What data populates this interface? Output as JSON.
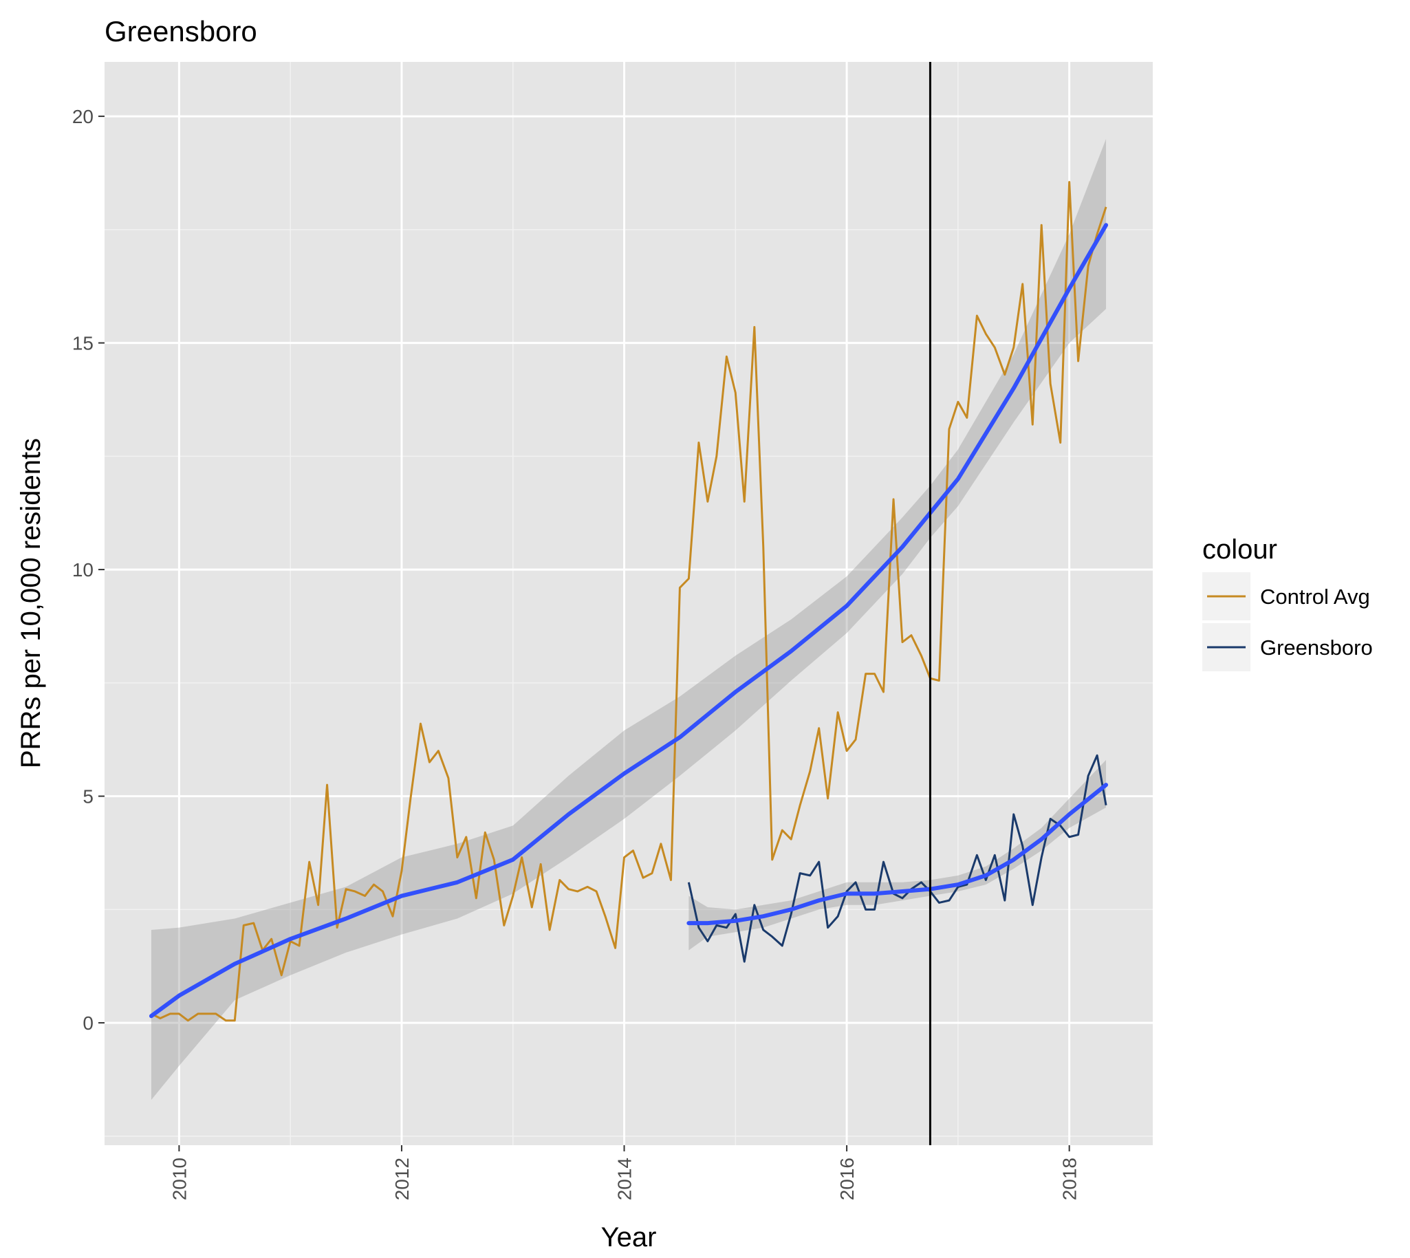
{
  "chart_data": {
    "type": "line",
    "title": "Greensboro",
    "xlabel": "Year",
    "ylabel": "PRRs per 10,000 residents",
    "xlim": [
      2009.33,
      2018.75
    ],
    "ylim": [
      -2.7,
      21.2
    ],
    "x_ticks": [
      2010,
      2012,
      2014,
      2016,
      2018
    ],
    "x_minor_ticks": [
      2011,
      2013,
      2015,
      2017
    ],
    "y_ticks": [
      0,
      5,
      10,
      15,
      20
    ],
    "y_minor_ticks": [
      -2.5,
      2.5,
      7.5,
      12.5,
      17.5
    ],
    "grid": true,
    "legend": {
      "title": "colour",
      "position": "right"
    },
    "vline": {
      "x": 2016.75,
      "color": "#000000"
    },
    "series": [
      {
        "name": "Control Avg",
        "color": "#c68a22",
        "x": [
          2009.75,
          2009.83,
          2009.92,
          2010.0,
          2010.08,
          2010.17,
          2010.25,
          2010.33,
          2010.42,
          2010.5,
          2010.58,
          2010.67,
          2010.75,
          2010.83,
          2010.92,
          2011.0,
          2011.08,
          2011.17,
          2011.25,
          2011.33,
          2011.42,
          2011.5,
          2011.58,
          2011.67,
          2011.75,
          2011.83,
          2011.92,
          2012.0,
          2012.08,
          2012.17,
          2012.25,
          2012.33,
          2012.42,
          2012.5,
          2012.58,
          2012.67,
          2012.75,
          2012.83,
          2012.92,
          2013.0,
          2013.08,
          2013.17,
          2013.25,
          2013.33,
          2013.42,
          2013.5,
          2013.58,
          2013.67,
          2013.75,
          2013.83,
          2013.92,
          2014.0,
          2014.08,
          2014.17,
          2014.25,
          2014.33,
          2014.42,
          2014.5,
          2014.58,
          2014.67,
          2014.75,
          2014.83,
          2014.92,
          2015.0,
          2015.08,
          2015.17,
          2015.25,
          2015.33,
          2015.42,
          2015.5,
          2015.58,
          2015.67,
          2015.75,
          2015.83,
          2015.92,
          2016.0,
          2016.08,
          2016.17,
          2016.25,
          2016.33,
          2016.42,
          2016.5,
          2016.58,
          2016.67,
          2016.75,
          2016.83,
          2016.92,
          2017.0,
          2017.08,
          2017.17,
          2017.25,
          2017.33,
          2017.42,
          2017.5,
          2017.58,
          2017.67,
          2017.75,
          2017.83,
          2017.92,
          2018.0,
          2018.08,
          2018.17,
          2018.25,
          2018.33
        ],
        "values": [
          0.2,
          0.1,
          0.2,
          0.2,
          0.05,
          0.2,
          0.2,
          0.2,
          0.05,
          0.05,
          2.15,
          2.2,
          1.6,
          1.85,
          1.05,
          1.8,
          1.7,
          3.55,
          2.6,
          5.25,
          2.1,
          2.95,
          2.9,
          2.8,
          3.05,
          2.9,
          2.35,
          3.35,
          4.95,
          6.6,
          5.75,
          6.0,
          5.4,
          3.65,
          4.1,
          2.75,
          4.2,
          3.6,
          2.15,
          2.8,
          3.65,
          2.55,
          3.5,
          2.05,
          3.15,
          2.95,
          2.9,
          3.0,
          2.9,
          2.35,
          1.65,
          3.65,
          3.8,
          3.2,
          3.3,
          3.95,
          3.15,
          9.6,
          9.8,
          12.8,
          11.5,
          12.5,
          14.7,
          13.9,
          11.5,
          15.35,
          10.5,
          3.6,
          4.25,
          4.05,
          4.8,
          5.55,
          6.5,
          4.95,
          6.85,
          6.0,
          6.25,
          7.7,
          7.7,
          7.3,
          11.55,
          8.4,
          8.55,
          8.1,
          7.6,
          7.55,
          13.1,
          13.7,
          13.35,
          15.6,
          15.2,
          14.9,
          14.3,
          14.9,
          16.3,
          13.2,
          17.6,
          14.1,
          12.8,
          18.55,
          14.6,
          16.7,
          17.4,
          18.0
        ]
      },
      {
        "name": "Greensboro",
        "color": "#1a3a6b",
        "x": [
          2014.58,
          2014.67,
          2014.75,
          2014.83,
          2014.92,
          2015.0,
          2015.08,
          2015.17,
          2015.25,
          2015.33,
          2015.42,
          2015.5,
          2015.58,
          2015.67,
          2015.75,
          2015.83,
          2015.92,
          2016.0,
          2016.08,
          2016.17,
          2016.25,
          2016.33,
          2016.42,
          2016.5,
          2016.58,
          2016.67,
          2016.75,
          2016.83,
          2016.92,
          2017.0,
          2017.08,
          2017.17,
          2017.25,
          2017.33,
          2017.42,
          2017.5,
          2017.58,
          2017.67,
          2017.75,
          2017.83,
          2017.92,
          2018.0,
          2018.08,
          2018.17,
          2018.25,
          2018.33
        ],
        "values": [
          3.1,
          2.1,
          1.8,
          2.15,
          2.1,
          2.4,
          1.35,
          2.6,
          2.05,
          1.9,
          1.7,
          2.4,
          3.3,
          3.25,
          3.55,
          2.1,
          2.35,
          2.9,
          3.1,
          2.5,
          2.5,
          3.55,
          2.85,
          2.75,
          2.95,
          3.1,
          2.9,
          2.65,
          2.7,
          3.0,
          3.05,
          3.7,
          3.15,
          3.7,
          2.7,
          4.6,
          3.9,
          2.6,
          3.65,
          4.5,
          4.35,
          4.1,
          4.15,
          5.45,
          5.9,
          4.8
        ]
      }
    ],
    "smooth_series": [
      {
        "color": "#3250fb",
        "x": [
          2009.75,
          2010.0,
          2010.5,
          2011.0,
          2011.5,
          2012.0,
          2012.5,
          2013.0,
          2013.5,
          2014.0,
          2014.5,
          2015.0,
          2015.5,
          2016.0,
          2016.5,
          2016.75,
          2017.0,
          2017.5,
          2018.0,
          2018.33
        ],
        "values": [
          0.15,
          0.6,
          1.3,
          1.85,
          2.3,
          2.8,
          3.1,
          3.6,
          4.6,
          5.5,
          6.3,
          7.3,
          8.2,
          9.2,
          10.5,
          11.25,
          12.0,
          14.0,
          16.2,
          17.6
        ],
        "ci_lower": [
          -1.7,
          -0.95,
          0.5,
          1.05,
          1.55,
          1.95,
          2.3,
          2.85,
          3.65,
          4.5,
          5.45,
          6.45,
          7.55,
          8.6,
          9.9,
          10.7,
          11.4,
          13.25,
          15.0,
          15.75
        ],
        "ci_upper": [
          2.05,
          2.1,
          2.3,
          2.65,
          3.0,
          3.65,
          3.95,
          4.35,
          5.45,
          6.45,
          7.2,
          8.1,
          8.9,
          9.85,
          11.15,
          11.85,
          12.65,
          14.75,
          17.4,
          19.5
        ]
      },
      {
        "color": "#3250fb",
        "x": [
          2014.58,
          2014.75,
          2015.0,
          2015.25,
          2015.5,
          2015.75,
          2016.0,
          2016.25,
          2016.5,
          2016.75,
          2017.0,
          2017.25,
          2017.5,
          2017.75,
          2018.0,
          2018.33
        ],
        "values": [
          2.2,
          2.2,
          2.25,
          2.35,
          2.5,
          2.7,
          2.85,
          2.85,
          2.9,
          2.95,
          3.05,
          3.25,
          3.6,
          4.05,
          4.6,
          5.25
        ],
        "ci_lower": [
          1.6,
          1.9,
          2.0,
          2.1,
          2.3,
          2.5,
          2.6,
          2.6,
          2.7,
          2.8,
          2.9,
          3.05,
          3.4,
          3.8,
          4.3,
          4.75
        ],
        "ci_upper": [
          2.8,
          2.55,
          2.5,
          2.6,
          2.7,
          2.9,
          3.1,
          3.1,
          3.1,
          3.15,
          3.25,
          3.45,
          3.85,
          4.3,
          4.95,
          5.8
        ]
      }
    ]
  }
}
